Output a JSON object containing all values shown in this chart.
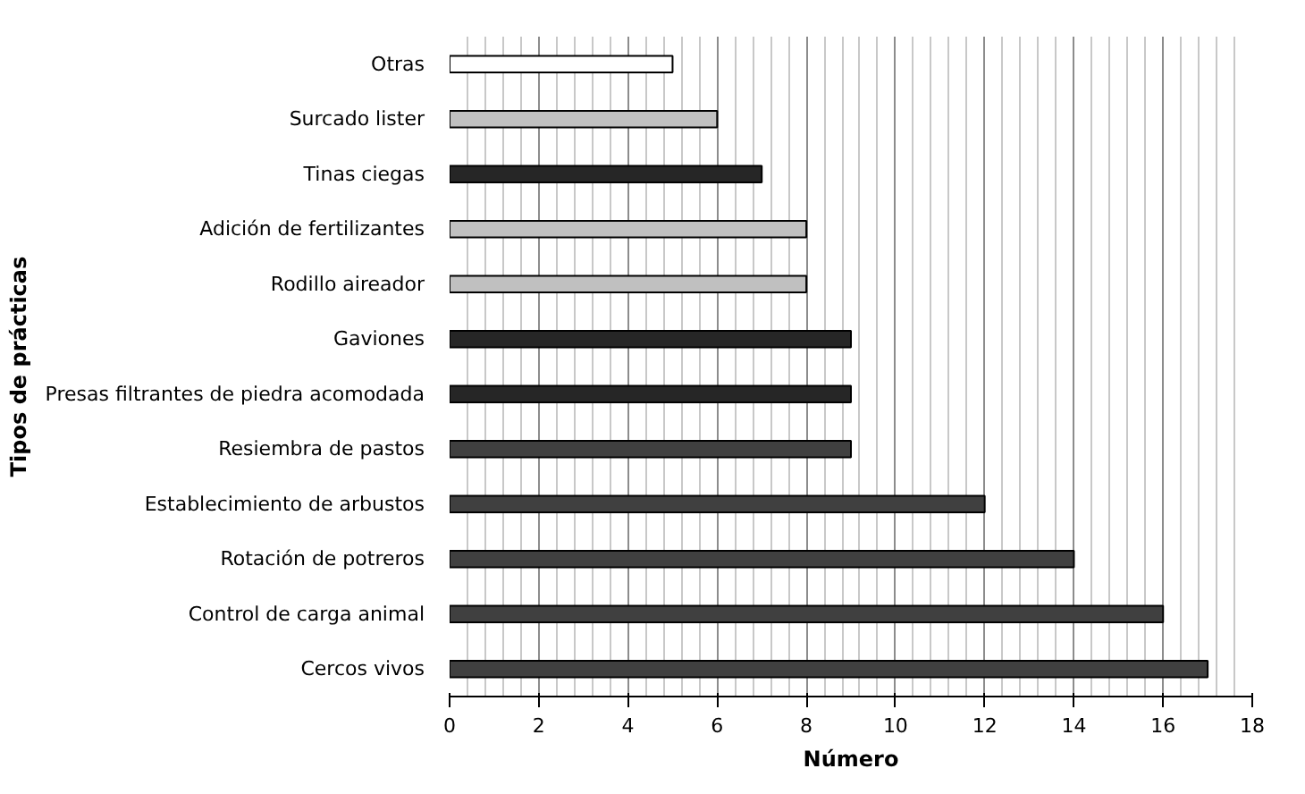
{
  "chart_data": {
    "type": "bar",
    "orientation": "horizontal",
    "xlabel": "Número",
    "ylabel": "Tipos de prácticas",
    "categories": [
      "Otras",
      "Surcado lister",
      "Tinas ciegas",
      "Adición de fertilizantes",
      "Rodillo aireador",
      "Gaviones",
      "Presas filtrantes de piedra acomodada",
      "Resiembra de pastos",
      "Establecimiento de arbustos",
      "Rotación de potreros",
      "Control de carga animal",
      "Cercos vivos"
    ],
    "values": [
      5,
      6,
      7,
      8,
      8,
      9,
      9,
      9,
      12,
      14,
      16,
      17
    ],
    "colors": [
      "#ffffff",
      "#c0c0c0",
      "#262626",
      "#c0c0c0",
      "#c0c0c0",
      "#262626",
      "#262626",
      "#404040",
      "#404040",
      "#404040",
      "#404040",
      "#404040"
    ],
    "xlim": [
      0,
      18
    ],
    "xticks": [
      0,
      2,
      4,
      6,
      8,
      10,
      12,
      14,
      16,
      18
    ],
    "grid": "x"
  }
}
